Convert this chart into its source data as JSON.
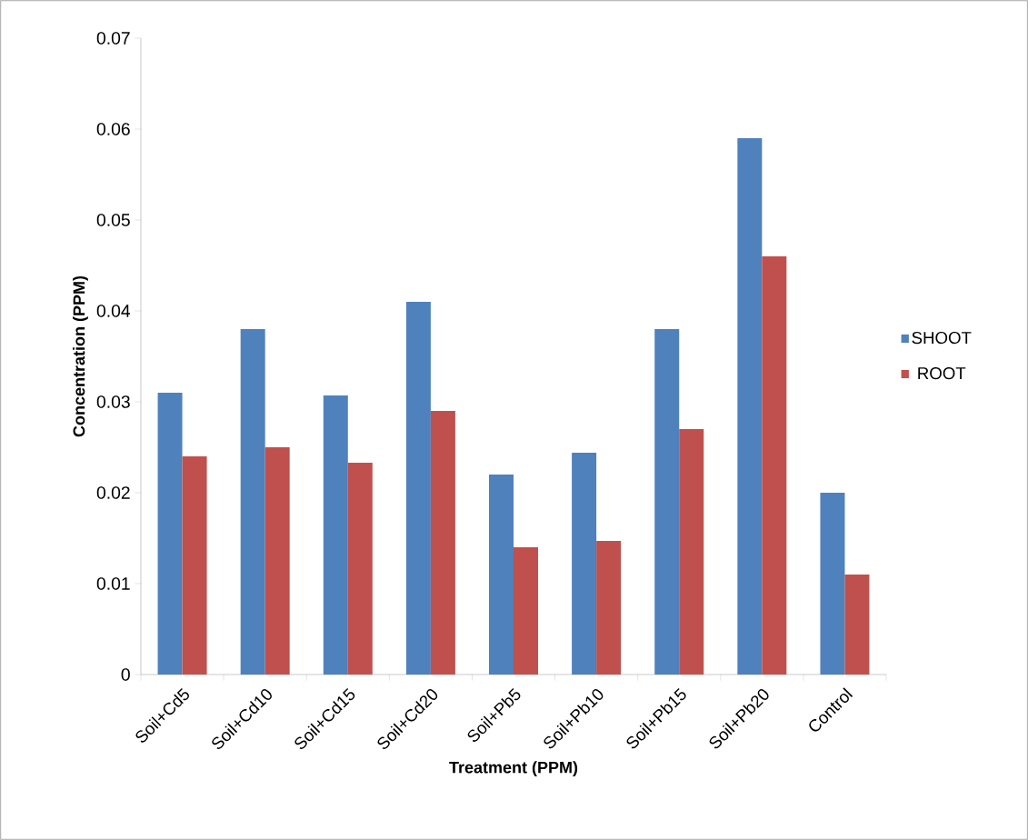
{
  "chart_data": {
    "type": "bar",
    "xlabel": "Treatment (PPM)",
    "ylabel": "Concentration (PPM)",
    "categories": [
      "Soil+Cd5",
      "Soil+Cd10",
      "Soil+Cd15",
      "Soil+Cd20",
      "Soil+Pb5",
      "Soil+Pb10",
      "Soil+Pb15",
      "Soil+Pb20",
      "Control"
    ],
    "series": [
      {
        "name": "SHOOT",
        "color": "#4f81bd",
        "values": [
          0.031,
          0.038,
          0.0307,
          0.041,
          0.022,
          0.0244,
          0.038,
          0.059,
          0.02
        ]
      },
      {
        "name": "ROOT",
        "color": "#c0504d",
        "values": [
          0.024,
          0.025,
          0.0233,
          0.029,
          0.014,
          0.0147,
          0.027,
          0.046,
          0.011
        ]
      }
    ],
    "ylim": [
      0,
      0.07
    ],
    "yticks": [
      0,
      0.01,
      0.02,
      0.03,
      0.04,
      0.05,
      0.06,
      0.07
    ],
    "legend": "right",
    "grid": false
  }
}
